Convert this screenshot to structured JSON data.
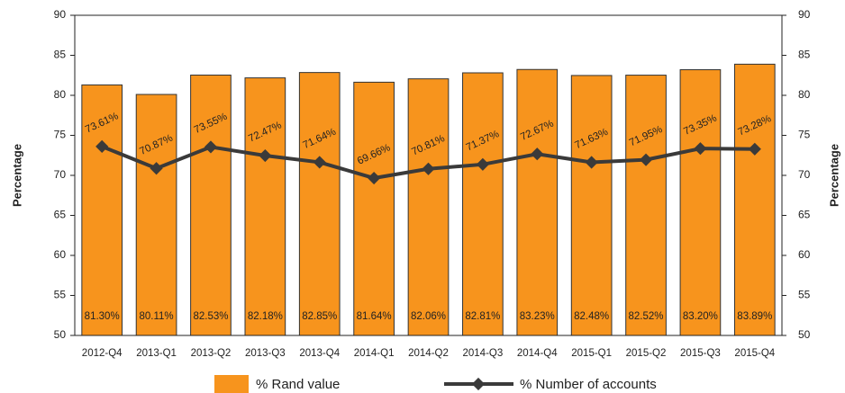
{
  "chart_data": {
    "type": "bar",
    "y_label": "Percentage",
    "y2_label": "Percentage",
    "categories": [
      "2012-Q4",
      "2013-Q1",
      "2013-Q2",
      "2013-Q3",
      "2013-Q4",
      "2014-Q1",
      "2014-Q2",
      "2014-Q3",
      "2014-Q4",
      "2015-Q1",
      "2015-Q2",
      "2015-Q3",
      "2015-Q4"
    ],
    "series": [
      {
        "name": "% Rand value",
        "type": "bar",
        "color": "#f7941d",
        "values": [
          81.3,
          80.11,
          82.53,
          82.18,
          82.85,
          81.64,
          82.06,
          82.81,
          83.23,
          82.48,
          82.52,
          83.2,
          83.89
        ],
        "value_labels": [
          "81.30%",
          "80.11%",
          "82.53%",
          "82.18%",
          "82.85%",
          "81.64%",
          "82.06%",
          "82.81%",
          "83.23%",
          "82.48%",
          "82.52%",
          "83.20%",
          "83.89%"
        ]
      },
      {
        "name": "% Number of accounts",
        "type": "line",
        "color": "#3a3a3a",
        "axis": "y2",
        "values": [
          73.61,
          70.87,
          73.55,
          72.47,
          71.64,
          69.66,
          70.81,
          71.37,
          72.67,
          71.63,
          71.95,
          73.35,
          73.28
        ],
        "value_labels": [
          "73.61%",
          "70.87%",
          "73.55%",
          "72.47%",
          "71.64%",
          "69.66%",
          "70.81%",
          "71.37%",
          "72.67%",
          "71.63%",
          "71.95%",
          "73.35%",
          "73.28%"
        ]
      }
    ],
    "ylim": [
      50,
      90
    ],
    "yticks": [
      50,
      55,
      60,
      65,
      70,
      75,
      80,
      85,
      90
    ],
    "y2lim": [
      50,
      90
    ],
    "y2ticks": [
      50,
      55,
      60,
      65,
      70,
      75,
      80,
      85,
      90
    ]
  }
}
